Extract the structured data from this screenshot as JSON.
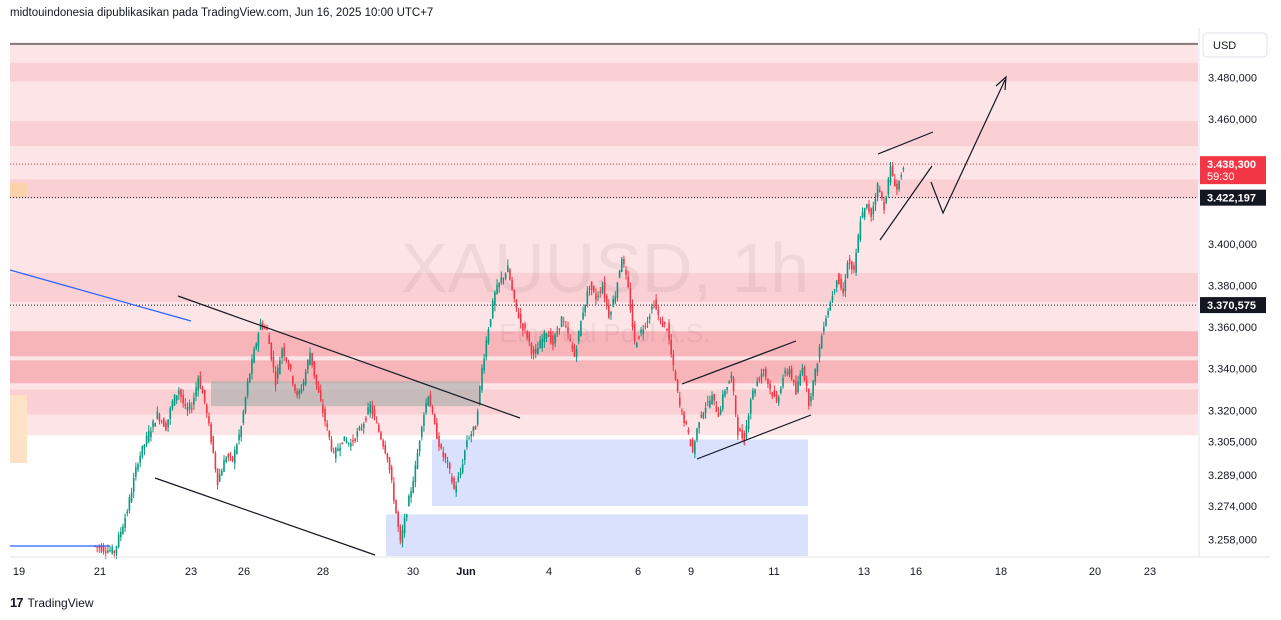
{
  "header": {
    "attribution": "midtouindonesia dipublikasikan pada TradingView.com, Jun 16, 2025 10:00 UTC+7"
  },
  "footer": {
    "logo_mark": "17",
    "brand": "TradingView"
  },
  "watermark": {
    "symbol": "XAUUSD, 1h",
    "subtitle": "Ethereal Pool A.S."
  },
  "chart_data": {
    "type": "candlestick",
    "symbol": "XAUUSD",
    "interval": "1h",
    "currency": "USD",
    "ylim": [
      3250,
      3497
    ],
    "y_ticks": [
      {
        "value": 3480,
        "label": "3.480,000"
      },
      {
        "value": 3460,
        "label": "3.460,000"
      },
      {
        "value": 3400,
        "label": "3.400,000"
      },
      {
        "value": 3380,
        "label": "3.380,000"
      },
      {
        "value": 3360,
        "label": "3.360,000"
      },
      {
        "value": 3340,
        "label": "3.340,000"
      },
      {
        "value": 3320,
        "label": "3.320,000"
      },
      {
        "value": 3305,
        "label": "3.305,000"
      },
      {
        "value": 3289,
        "label": "3.289,000"
      },
      {
        "value": 3274,
        "label": "3.274,000"
      },
      {
        "value": 3258,
        "label": "3.258,000"
      }
    ],
    "x_ticks": [
      "19",
      "21",
      "23",
      "26",
      "28",
      "30",
      "Jun",
      "4",
      "6",
      "9",
      "11",
      "13",
      "16",
      "18",
      "20",
      "23"
    ],
    "price_markers": [
      {
        "value": 3438.3,
        "label": "3.438,300",
        "sublabel": "59:30",
        "color": "#f23645",
        "role": "last-price"
      },
      {
        "value": 3422.197,
        "label": "3.422,197",
        "color": "#131722",
        "role": "horizontal-line"
      },
      {
        "value": 3370.575,
        "label": "3.370,575",
        "color": "#131722",
        "role": "horizontal-line"
      }
    ],
    "series": [
      {
        "x": 0.0,
        "y": 3255
      },
      {
        "x": 1.0,
        "y": 3252
      },
      {
        "x": 1.6,
        "y": 3272
      },
      {
        "x": 2.1,
        "y": 3296
      },
      {
        "x": 2.6,
        "y": 3309
      },
      {
        "x": 3.0,
        "y": 3318
      },
      {
        "x": 3.4,
        "y": 3312
      },
      {
        "x": 3.7,
        "y": 3324
      },
      {
        "x": 4.0,
        "y": 3330
      },
      {
        "x": 4.3,
        "y": 3320
      },
      {
        "x": 4.6,
        "y": 3322
      },
      {
        "x": 4.9,
        "y": 3336
      },
      {
        "x": 5.2,
        "y": 3324
      },
      {
        "x": 5.5,
        "y": 3306
      },
      {
        "x": 5.8,
        "y": 3286
      },
      {
        "x": 6.2,
        "y": 3298
      },
      {
        "x": 6.5,
        "y": 3296
      },
      {
        "x": 6.9,
        "y": 3312
      },
      {
        "x": 7.2,
        "y": 3333
      },
      {
        "x": 7.5,
        "y": 3348
      },
      {
        "x": 7.8,
        "y": 3362
      },
      {
        "x": 8.1,
        "y": 3358
      },
      {
        "x": 8.5,
        "y": 3334
      },
      {
        "x": 8.8,
        "y": 3350
      },
      {
        "x": 9.1,
        "y": 3342
      },
      {
        "x": 9.5,
        "y": 3326
      },
      {
        "x": 9.8,
        "y": 3334
      },
      {
        "x": 10.1,
        "y": 3348
      },
      {
        "x": 10.4,
        "y": 3332
      },
      {
        "x": 10.8,
        "y": 3315
      },
      {
        "x": 11.2,
        "y": 3298
      },
      {
        "x": 11.6,
        "y": 3306
      },
      {
        "x": 12.0,
        "y": 3304
      },
      {
        "x": 12.5,
        "y": 3312
      },
      {
        "x": 12.9,
        "y": 3322
      },
      {
        "x": 13.3,
        "y": 3310
      },
      {
        "x": 13.7,
        "y": 3298
      },
      {
        "x": 14.0,
        "y": 3278
      },
      {
        "x": 14.3,
        "y": 3256
      },
      {
        "x": 14.6,
        "y": 3272
      },
      {
        "x": 15.0,
        "y": 3292
      },
      {
        "x": 15.3,
        "y": 3314
      },
      {
        "x": 15.6,
        "y": 3328
      },
      {
        "x": 15.9,
        "y": 3312
      },
      {
        "x": 16.2,
        "y": 3300
      },
      {
        "x": 16.5,
        "y": 3294
      },
      {
        "x": 16.8,
        "y": 3282
      },
      {
        "x": 17.1,
        "y": 3290
      },
      {
        "x": 17.4,
        "y": 3306
      },
      {
        "x": 17.8,
        "y": 3312
      },
      {
        "x": 18.1,
        "y": 3340
      },
      {
        "x": 18.4,
        "y": 3360
      },
      {
        "x": 18.7,
        "y": 3376
      },
      {
        "x": 19.0,
        "y": 3383
      },
      {
        "x": 19.3,
        "y": 3388
      },
      {
        "x": 19.6,
        "y": 3372
      },
      {
        "x": 19.9,
        "y": 3362
      },
      {
        "x": 20.2,
        "y": 3356
      },
      {
        "x": 20.5,
        "y": 3346
      },
      {
        "x": 20.8,
        "y": 3352
      },
      {
        "x": 21.1,
        "y": 3358
      },
      {
        "x": 21.4,
        "y": 3352
      },
      {
        "x": 21.8,
        "y": 3364
      },
      {
        "x": 22.1,
        "y": 3356
      },
      {
        "x": 22.4,
        "y": 3346
      },
      {
        "x": 22.8,
        "y": 3368
      },
      {
        "x": 23.1,
        "y": 3380
      },
      {
        "x": 23.4,
        "y": 3374
      },
      {
        "x": 23.7,
        "y": 3380
      },
      {
        "x": 24.0,
        "y": 3366
      },
      {
        "x": 24.3,
        "y": 3376
      },
      {
        "x": 24.6,
        "y": 3394
      },
      {
        "x": 24.9,
        "y": 3378
      },
      {
        "x": 25.2,
        "y": 3352
      },
      {
        "x": 25.5,
        "y": 3358
      },
      {
        "x": 25.8,
        "y": 3364
      },
      {
        "x": 26.1,
        "y": 3372
      },
      {
        "x": 26.4,
        "y": 3362
      },
      {
        "x": 26.7,
        "y": 3360
      },
      {
        "x": 27.0,
        "y": 3340
      },
      {
        "x": 27.3,
        "y": 3322
      },
      {
        "x": 27.6,
        "y": 3312
      },
      {
        "x": 27.9,
        "y": 3300
      },
      {
        "x": 28.2,
        "y": 3316
      },
      {
        "x": 28.5,
        "y": 3322
      },
      {
        "x": 28.8,
        "y": 3326
      },
      {
        "x": 29.1,
        "y": 3318
      },
      {
        "x": 29.4,
        "y": 3330
      },
      {
        "x": 29.7,
        "y": 3336
      },
      {
        "x": 30.0,
        "y": 3310
      },
      {
        "x": 30.3,
        "y": 3306
      },
      {
        "x": 30.6,
        "y": 3326
      },
      {
        "x": 30.9,
        "y": 3334
      },
      {
        "x": 31.2,
        "y": 3340
      },
      {
        "x": 31.5,
        "y": 3330
      },
      {
        "x": 31.8,
        "y": 3324
      },
      {
        "x": 32.1,
        "y": 3336
      },
      {
        "x": 32.4,
        "y": 3340
      },
      {
        "x": 32.7,
        "y": 3328
      },
      {
        "x": 33.0,
        "y": 3342
      },
      {
        "x": 33.3,
        "y": 3324
      },
      {
        "x": 33.6,
        "y": 3338
      },
      {
        "x": 34.0,
        "y": 3362
      },
      {
        "x": 34.3,
        "y": 3372
      },
      {
        "x": 34.6,
        "y": 3384
      },
      {
        "x": 34.9,
        "y": 3376
      },
      {
        "x": 35.1,
        "y": 3392
      },
      {
        "x": 35.4,
        "y": 3386
      },
      {
        "x": 35.7,
        "y": 3412
      },
      {
        "x": 36.0,
        "y": 3418
      },
      {
        "x": 36.2,
        "y": 3414
      },
      {
        "x": 36.5,
        "y": 3428
      },
      {
        "x": 36.8,
        "y": 3418
      },
      {
        "x": 37.1,
        "y": 3436
      },
      {
        "x": 37.4,
        "y": 3426
      },
      {
        "x": 37.7,
        "y": 3438.3
      }
    ],
    "zones": [
      {
        "name": "resistance-band-1",
        "from": 3478,
        "to": 3487,
        "color": "#f9cdd1"
      },
      {
        "name": "resistance-band-2",
        "from": 3447,
        "to": 3459,
        "color": "#f9cdd1"
      },
      {
        "name": "resistance-band-3",
        "from": 3422,
        "to": 3431,
        "color": "#f9cdd1"
      },
      {
        "name": "resistance-band-4",
        "from": 3372,
        "to": 3386,
        "color": "#f9cdd1"
      },
      {
        "name": "resistance-band-5",
        "from": 3346,
        "to": 3358,
        "color": "#f6aeb4"
      },
      {
        "name": "resistance-band-6",
        "from": 3333,
        "to": 3344,
        "color": "#f6aeb4"
      },
      {
        "name": "resistance-band-7",
        "from": 3318,
        "to": 3330,
        "color": "#f9cdd1"
      },
      {
        "name": "demand-zone-1",
        "from": 3274,
        "to": 3306,
        "color": "#d5defd"
      },
      {
        "name": "demand-zone-2",
        "from": 3250,
        "to": 3270,
        "color": "#d5defd"
      },
      {
        "name": "supply-box",
        "from": 3322,
        "to": 3334,
        "color": "#b0b0b0"
      }
    ],
    "legend": "none",
    "grid": false
  }
}
